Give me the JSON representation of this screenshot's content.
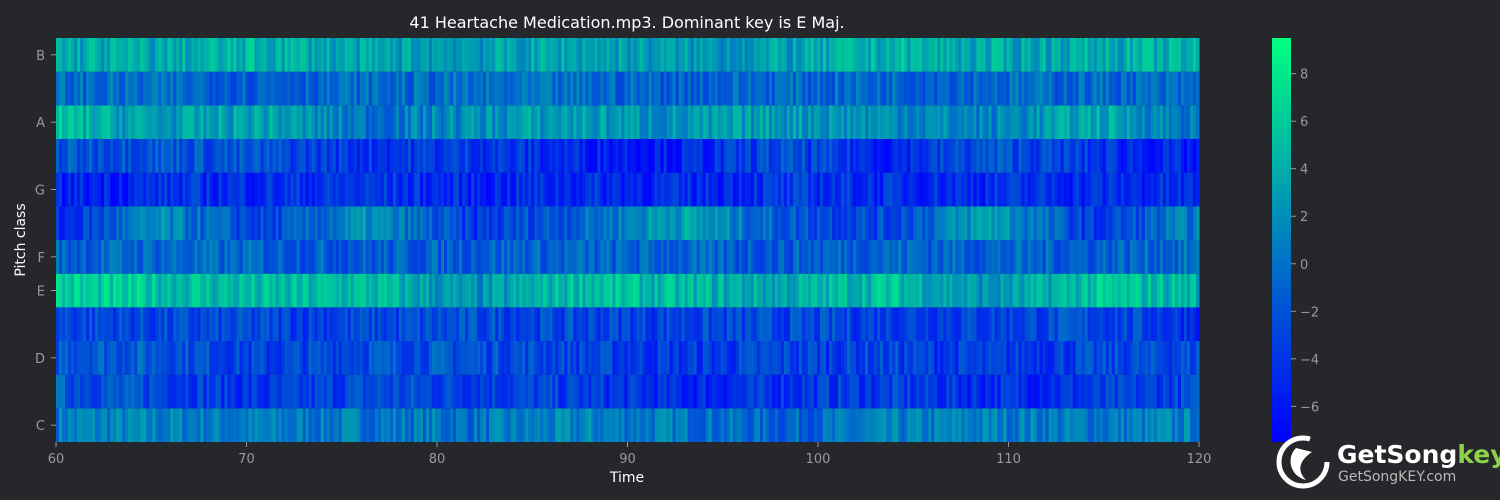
{
  "chart_data": {
    "type": "heatmap",
    "title": "41 Heartache Medication.mp3. Dominant key is E Maj.",
    "xlabel": "Time",
    "ylabel": "Pitch class",
    "xlim": [
      60,
      120
    ],
    "x_ticks": [
      "60",
      "70",
      "80",
      "90",
      "100",
      "110",
      "120"
    ],
    "rows": [
      "C",
      "C#",
      "D",
      "D#",
      "E",
      "F",
      "F#",
      "G",
      "G#",
      "A",
      "A#",
      "B"
    ],
    "y_tick_labels": [
      "C",
      "D",
      "E",
      "F",
      "G",
      "A",
      "B"
    ],
    "zlim": [
      -7.5,
      9.5
    ],
    "colorbar_ticks": [
      "8",
      "6",
      "4",
      "2",
      "0",
      "−2",
      "−4",
      "−6"
    ],
    "colorbar_tick_values": [
      8,
      6,
      4,
      2,
      0,
      -2,
      -4,
      -6
    ],
    "colormap": [
      "#0000ff",
      "#00ff80"
    ],
    "row_profiles": [
      {
        "row": "C",
        "values": [
          1.0,
          1.0,
          0.5,
          0.5,
          0.0,
          1.0,
          0.5,
          -1.0,
          0.5,
          1.0,
          0.5,
          1.0
        ]
      },
      {
        "row": "C#",
        "values": [
          -1.5,
          -2.5,
          -4.5,
          -2.5,
          -3.0,
          -3.5,
          -5.0,
          -4.0,
          -3.5,
          -4.5,
          -4.0,
          -3.0
        ]
      },
      {
        "row": "D",
        "values": [
          -1.0,
          -1.5,
          -3.5,
          -2.0,
          -2.0,
          -3.0,
          -4.0,
          -3.0,
          -3.0,
          -4.0,
          -3.0,
          -2.5
        ]
      },
      {
        "row": "D#",
        "values": [
          -2.5,
          -3.0,
          -3.0,
          -3.0,
          -2.5,
          -3.0,
          -3.0,
          -3.0,
          -3.0,
          -3.0,
          -2.5,
          -4.0
        ]
      },
      {
        "row": "E",
        "values": [
          6.0,
          5.5,
          4.5,
          5.0,
          1.5,
          5.5,
          4.5,
          3.5,
          5.5,
          2.0,
          5.5,
          4.5
        ]
      },
      {
        "row": "F",
        "values": [
          -1.0,
          -0.5,
          -1.0,
          -1.5,
          -1.0,
          -1.0,
          -1.0,
          -1.5,
          -0.5,
          -1.0,
          -1.0,
          -0.5
        ]
      },
      {
        "row": "F#",
        "values": [
          -5.0,
          1.5,
          -3.5,
          2.0,
          -4.0,
          -1.0,
          3.5,
          -1.5,
          -3.0,
          3.5,
          -4.0,
          1.0
        ]
      },
      {
        "row": "G",
        "values": [
          -5.5,
          -4.5,
          -4.5,
          -4.0,
          -5.0,
          -4.5,
          -5.0,
          -4.0,
          -4.5,
          -4.5,
          -4.5,
          -5.0
        ]
      },
      {
        "row": "G#",
        "values": [
          -2.0,
          -1.5,
          -2.5,
          -4.0,
          -3.5,
          -5.0,
          -5.5,
          -2.5,
          -5.0,
          -2.0,
          -4.0,
          -6.0
        ]
      },
      {
        "row": "A",
        "values": [
          5.0,
          2.5,
          3.5,
          0.0,
          2.0,
          3.0,
          2.0,
          3.0,
          2.0,
          1.0,
          4.0,
          0.0
        ]
      },
      {
        "row": "A#",
        "values": [
          -0.5,
          -0.5,
          -1.0,
          -0.5,
          -0.5,
          -0.5,
          -1.0,
          -0.5,
          -0.5,
          -0.5,
          -0.5,
          -1.0
        ]
      },
      {
        "row": "B",
        "values": [
          4.0,
          3.5,
          4.5,
          3.0,
          3.0,
          3.5,
          2.5,
          3.0,
          4.5,
          3.5,
          4.0,
          4.0
        ]
      }
    ]
  },
  "watermark": {
    "brand": "GetSong",
    "brand_accent": "key",
    "url": "GetSongKEY.com",
    "accent_color": "#8ed14a"
  }
}
